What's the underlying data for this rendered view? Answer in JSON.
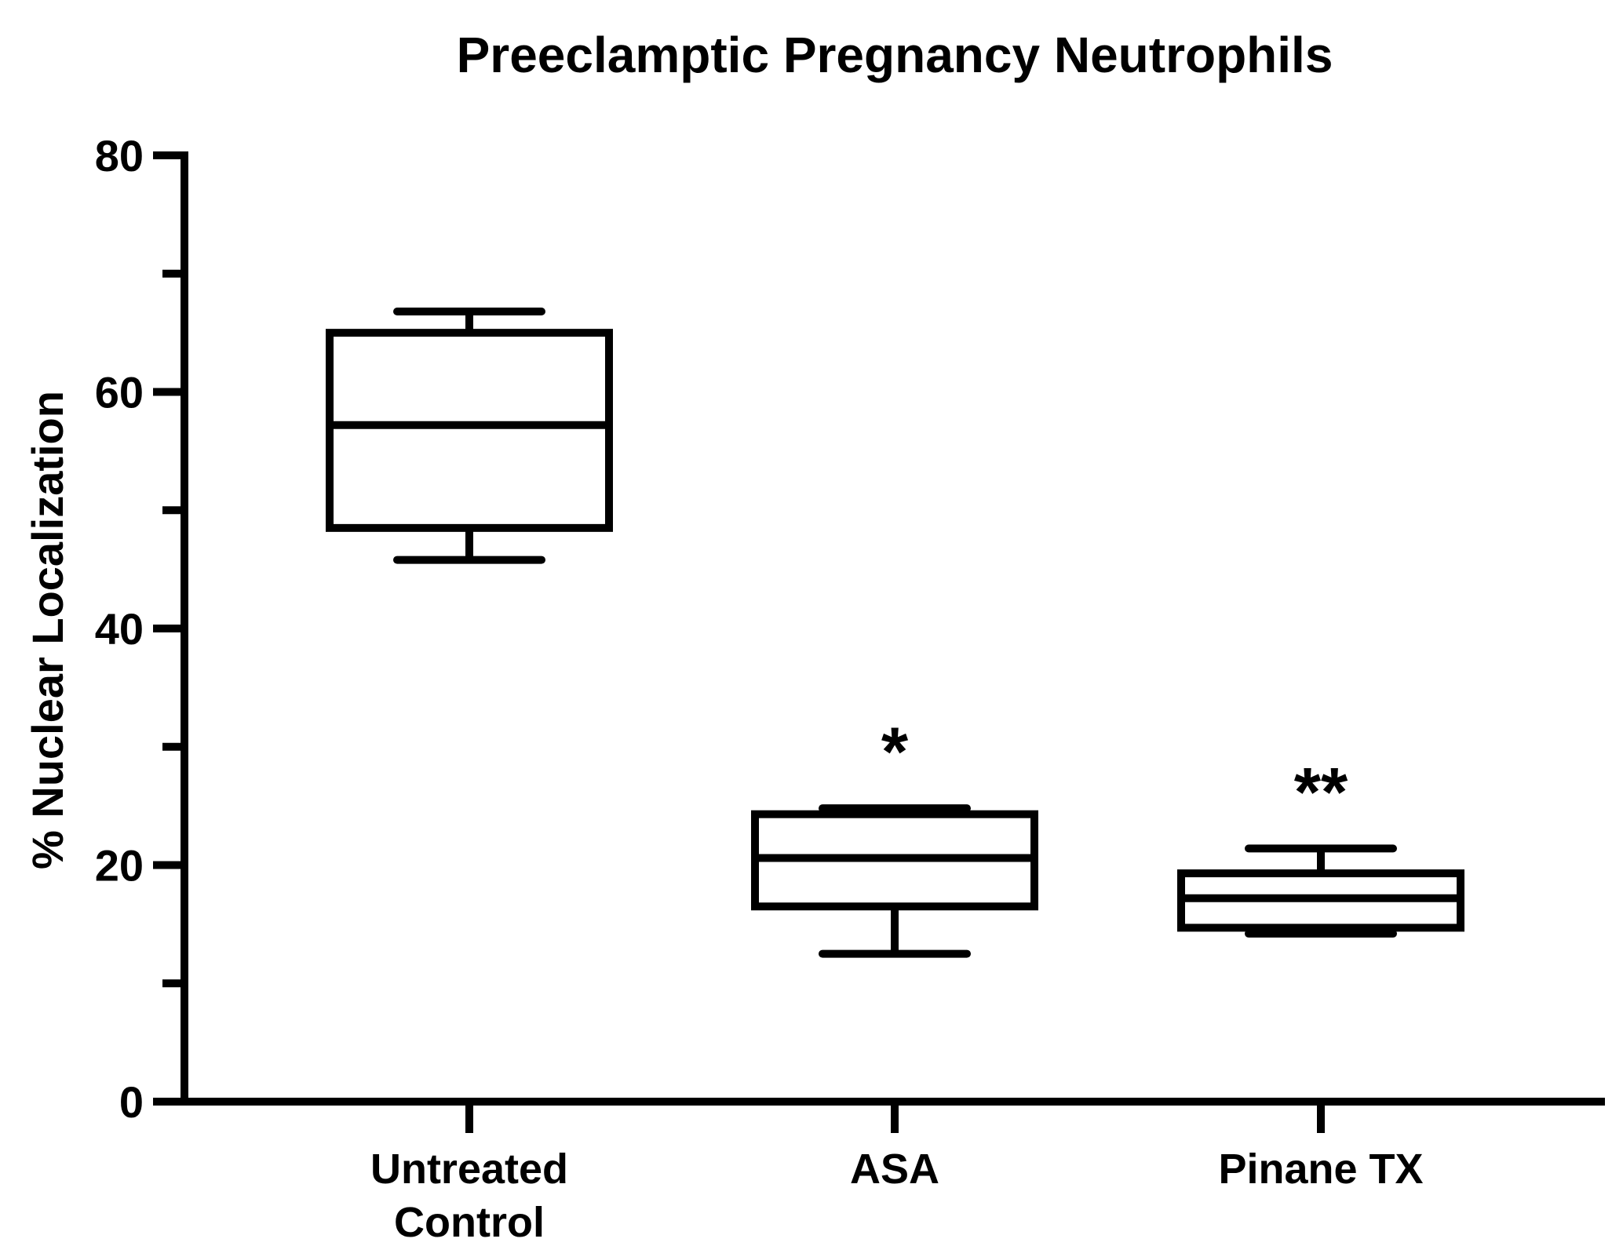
{
  "chart_data": {
    "type": "box",
    "title": "Preeclamptic Pregnancy Neutrophils",
    "ylabel": "% Nuclear Localization",
    "xlabel": "",
    "ylim": [
      0,
      80
    ],
    "yticks": [
      0,
      20,
      40,
      60,
      80
    ],
    "yticks_minor": [
      10,
      30,
      50,
      70
    ],
    "grid": false,
    "legend": "none",
    "categories": [
      {
        "lines": [
          "Untreated",
          "Control"
        ]
      },
      {
        "lines": [
          "ASA"
        ]
      },
      {
        "lines": [
          "Pinane TX"
        ]
      }
    ],
    "boxes": [
      {
        "min": 45.8,
        "q1": 48.5,
        "median": 57.2,
        "q3": 65.0,
        "max": 66.8,
        "annotation": ""
      },
      {
        "min": 12.5,
        "q1": 16.5,
        "median": 20.6,
        "q3": 24.3,
        "max": 24.8,
        "annotation": "*"
      },
      {
        "min": 14.2,
        "q1": 14.7,
        "median": 17.2,
        "q3": 19.3,
        "max": 21.4,
        "annotation": "**"
      }
    ],
    "colors": {
      "stroke": "#000000",
      "fill": "#ffffff",
      "background": "#ffffff"
    }
  }
}
